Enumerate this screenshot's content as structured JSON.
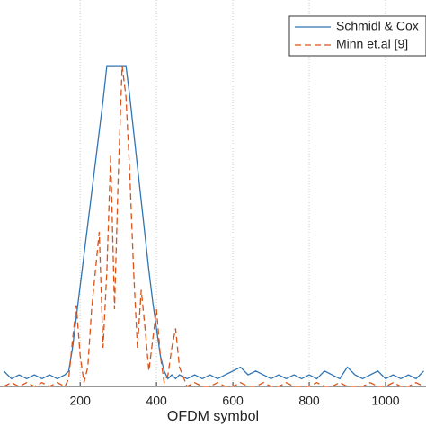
{
  "chart_data": {
    "type": "line",
    "xlabel": "OFDM symbol",
    "x": [
      0,
      20,
      40,
      60,
      80,
      100,
      120,
      140,
      160,
      170,
      180,
      190,
      200,
      210,
      220,
      230,
      240,
      250,
      260,
      270,
      280,
      290,
      300,
      310,
      320,
      330,
      340,
      350,
      360,
      370,
      380,
      390,
      400,
      410,
      420,
      430,
      440,
      450,
      460,
      480,
      500,
      520,
      540,
      560,
      580,
      600,
      620,
      640,
      660,
      680,
      700,
      720,
      740,
      760,
      780,
      800,
      820,
      840,
      860,
      880,
      900,
      920,
      940,
      960,
      980,
      1000,
      1020,
      1040,
      1060,
      1080,
      1100
    ],
    "series": [
      {
        "name": "Schmidl & Cox",
        "color": "#2f75b5",
        "dash": false,
        "values": [
          0.04,
          0.02,
          0.03,
          0.02,
          0.03,
          0.02,
          0.03,
          0.02,
          0.03,
          0.04,
          0.1,
          0.18,
          0.26,
          0.34,
          0.42,
          0.5,
          0.58,
          0.66,
          0.74,
          0.83,
          0.83,
          0.83,
          0.83,
          0.83,
          0.83,
          0.75,
          0.66,
          0.57,
          0.48,
          0.39,
          0.3,
          0.22,
          0.15,
          0.08,
          0.04,
          0.02,
          0.03,
          0.02,
          0.03,
          0.02,
          0.03,
          0.02,
          0.03,
          0.02,
          0.03,
          0.04,
          0.05,
          0.03,
          0.04,
          0.03,
          0.02,
          0.03,
          0.02,
          0.03,
          0.02,
          0.03,
          0.02,
          0.04,
          0.03,
          0.02,
          0.05,
          0.03,
          0.02,
          0.03,
          0.04,
          0.02,
          0.03,
          0.02,
          0.03,
          0.02,
          0.04
        ]
      },
      {
        "name": "Minn et.al [9]",
        "color": "#d95319",
        "dash": true,
        "values": [
          0,
          0.01,
          0,
          0.01,
          0,
          0.01,
          0,
          0.01,
          0,
          0.02,
          0.12,
          0.21,
          0.08,
          0.01,
          0.05,
          0.2,
          0.3,
          0.4,
          0.1,
          0.3,
          0.6,
          0.2,
          0.55,
          0.83,
          0.75,
          0.55,
          0.3,
          0.1,
          0.25,
          0.15,
          0.04,
          0.12,
          0.2,
          0.08,
          0.01,
          0.03,
          0.1,
          0.15,
          0.05,
          0,
          0.01,
          0,
          0,
          0.01,
          0,
          0,
          0.01,
          0,
          0,
          0.01,
          0,
          0,
          0.01,
          0,
          0,
          0,
          0.01,
          0,
          0,
          0.01,
          0,
          0,
          0,
          0.01,
          0,
          0,
          0.01,
          0,
          0,
          0.01,
          0
        ]
      }
    ],
    "xlim": [
      -10,
      1106
    ],
    "ylim": [
      0,
      1
    ],
    "xticks": [
      200,
      400,
      600,
      800,
      1000
    ],
    "grid": true,
    "legend": "top-right"
  }
}
